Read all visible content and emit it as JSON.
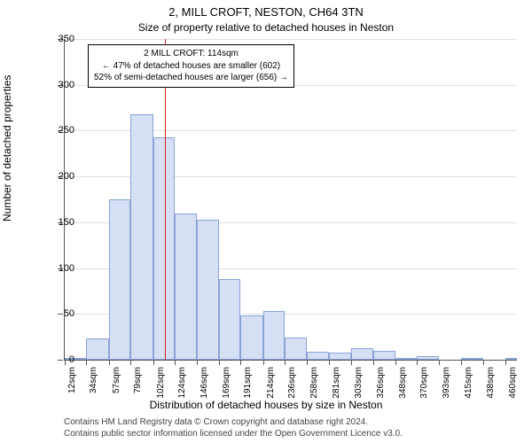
{
  "title": "2, MILL CROFT, NESTON, CH64 3TN",
  "subtitle": "Size of property relative to detached houses in Neston",
  "ylabel": "Number of detached properties",
  "xlabel": "Distribution of detached houses by size in Neston",
  "footnote_line1": "Contains HM Land Registry data © Crown copyright and database right 2024.",
  "footnote_line2": "Contains public sector information licensed under the Open Government Licence v3.0.",
  "chart": {
    "type": "histogram",
    "ylim": [
      0,
      350
    ],
    "ytick_step": 50,
    "grid_color": "#e0e0e0",
    "background_color": "#ffffff",
    "bar_fill": "#d6e0f5",
    "bar_stroke": "#8aa3d6",
    "refline_color": "#d62020",
    "refline_x": 114,
    "xtick_labels": [
      "12sqm",
      "34sqm",
      "57sqm",
      "79sqm",
      "102sqm",
      "124sqm",
      "146sqm",
      "169sqm",
      "191sqm",
      "214sqm",
      "236sqm",
      "258sqm",
      "281sqm",
      "303sqm",
      "326sqm",
      "348sqm",
      "370sqm",
      "393sqm",
      "415sqm",
      "438sqm",
      "460sqm"
    ],
    "xtick_values": [
      12,
      34,
      57,
      79,
      102,
      124,
      146,
      169,
      191,
      214,
      236,
      258,
      281,
      303,
      326,
      348,
      370,
      393,
      415,
      438,
      460
    ],
    "xmin": 12,
    "xmax": 472,
    "bars": [
      {
        "x0": 12,
        "x1": 34,
        "count": 1
      },
      {
        "x0": 34,
        "x1": 57,
        "count": 23
      },
      {
        "x0": 57,
        "x1": 79,
        "count": 175
      },
      {
        "x0": 79,
        "x1": 102,
        "count": 268
      },
      {
        "x0": 102,
        "x1": 124,
        "count": 243
      },
      {
        "x0": 124,
        "x1": 146,
        "count": 160
      },
      {
        "x0": 146,
        "x1": 169,
        "count": 153
      },
      {
        "x0": 169,
        "x1": 191,
        "count": 88
      },
      {
        "x0": 191,
        "x1": 214,
        "count": 48
      },
      {
        "x0": 214,
        "x1": 236,
        "count": 53
      },
      {
        "x0": 236,
        "x1": 258,
        "count": 24
      },
      {
        "x0": 258,
        "x1": 281,
        "count": 9
      },
      {
        "x0": 281,
        "x1": 303,
        "count": 8
      },
      {
        "x0": 303,
        "x1": 326,
        "count": 13
      },
      {
        "x0": 326,
        "x1": 348,
        "count": 10
      },
      {
        "x0": 348,
        "x1": 370,
        "count": 2
      },
      {
        "x0": 370,
        "x1": 393,
        "count": 4
      },
      {
        "x0": 393,
        "x1": 415,
        "count": 0
      },
      {
        "x0": 415,
        "x1": 438,
        "count": 1
      },
      {
        "x0": 438,
        "x1": 460,
        "count": 0
      },
      {
        "x0": 460,
        "x1": 472,
        "count": 1
      }
    ]
  },
  "annotation": {
    "line1": "2 MILL CROFT: 114sqm",
    "line2": "← 47% of detached houses are smaller (602)",
    "line3": "52% of semi-detached houses are larger (656) →"
  }
}
